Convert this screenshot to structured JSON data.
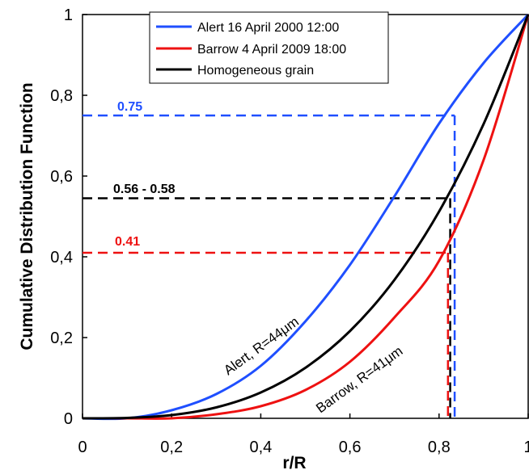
{
  "chart_data": {
    "type": "line",
    "xlabel": "r/R",
    "ylabel": "Cumulative Distribution Function",
    "xlim": [
      0,
      1
    ],
    "ylim": [
      0,
      1
    ],
    "x_ticks": [
      "0",
      "0,2",
      "0,4",
      "0,6",
      "0,8",
      "1"
    ],
    "y_ticks": [
      "0",
      "0,2",
      "0,4",
      "0,6",
      "0,8",
      "1"
    ],
    "legend_position": "top-center",
    "series": [
      {
        "name": "Alert 16 April 2000 12:00",
        "color": "#1f4fff",
        "x": [
          0,
          0.1,
          0.2,
          0.3,
          0.4,
          0.5,
          0.6,
          0.7,
          0.8,
          0.9,
          1.0
        ],
        "y": [
          0,
          0.0,
          0.02,
          0.06,
          0.13,
          0.24,
          0.38,
          0.55,
          0.73,
          0.88,
          1.0
        ]
      },
      {
        "name": "Barrow 4 April 2009 18:00",
        "color": "#ee1111",
        "x": [
          0,
          0.1,
          0.2,
          0.3,
          0.4,
          0.5,
          0.6,
          0.7,
          0.8,
          0.9,
          1.0
        ],
        "y": [
          0,
          0.0,
          0.0,
          0.01,
          0.03,
          0.07,
          0.14,
          0.25,
          0.39,
          0.64,
          1.0
        ]
      },
      {
        "name": "Homogeneous grain",
        "color": "#000000",
        "x": [
          0,
          0.1,
          0.2,
          0.3,
          0.4,
          0.5,
          0.6,
          0.7,
          0.8,
          0.9,
          1.0
        ],
        "y": [
          0,
          0.001,
          0.008,
          0.027,
          0.064,
          0.125,
          0.216,
          0.343,
          0.512,
          0.729,
          1.0
        ]
      }
    ],
    "reference_lines": [
      {
        "label": "0.75",
        "color": "#1f4fff",
        "y": 0.75,
        "x": 0.835
      },
      {
        "label": "0.56 - 0.58",
        "color": "#000000",
        "y": 0.545,
        "x": 0.825
      },
      {
        "label": "0.41",
        "color": "#ee1111",
        "y": 0.41,
        "x": 0.82
      }
    ],
    "curve_labels": [
      {
        "text": "Alert, R=44μm",
        "color": "#000000"
      },
      {
        "text": "Barrow, R=41μm",
        "color": "#000000"
      }
    ]
  }
}
